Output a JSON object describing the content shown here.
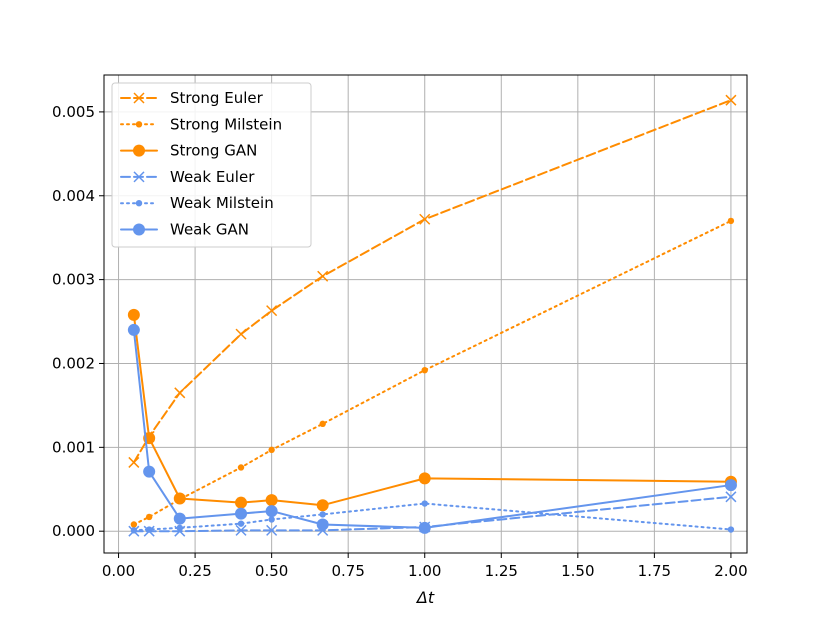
{
  "chart_data": {
    "type": "line",
    "title": "",
    "xlabel": "Δt",
    "ylabel": "",
    "xlim": [
      -0.0475,
      2.0525
    ],
    "ylim": [
      -0.00026,
      0.00544
    ],
    "x_ticks": [
      0.0,
      0.25,
      0.5,
      0.75,
      1.0,
      1.25,
      1.5,
      1.75,
      2.0
    ],
    "x_tick_labels": [
      "0.00",
      "0.25",
      "0.50",
      "0.75",
      "1.00",
      "1.25",
      "1.50",
      "1.75",
      "2.00"
    ],
    "y_ticks": [
      0.0,
      0.001,
      0.002,
      0.003,
      0.004,
      0.005
    ],
    "y_tick_labels": [
      "0.000",
      "0.001",
      "0.002",
      "0.003",
      "0.004",
      "0.005"
    ],
    "grid": true,
    "legend_position": "top-left",
    "x": [
      0.05,
      0.1,
      0.2,
      0.4,
      0.5,
      0.6667,
      1.0,
      2.0
    ],
    "series": [
      {
        "name": "Strong Euler",
        "color": "#ff8c00",
        "linestyle": "dashed",
        "marker": "x",
        "values": [
          0.00082,
          0.00113,
          0.00165,
          0.00235,
          0.00263,
          0.00304,
          0.00372,
          0.00514
        ]
      },
      {
        "name": "Strong Milstein",
        "color": "#ff8c00",
        "linestyle": "dotted",
        "marker": "small-dot",
        "values": [
          8e-05,
          0.00017,
          0.00038,
          0.00076,
          0.00097,
          0.00128,
          0.00192,
          0.0037
        ]
      },
      {
        "name": "Strong GAN",
        "color": "#ff8c00",
        "linestyle": "solid",
        "marker": "circle",
        "values": [
          0.00258,
          0.00111,
          0.00039,
          0.00034,
          0.00037,
          0.00031,
          0.00063,
          0.00059
        ]
      },
      {
        "name": "Weak Euler",
        "color": "#6495ed",
        "linestyle": "dashed",
        "marker": "x",
        "values": [
          0.0,
          0.0,
          0.0,
          1e-05,
          1e-05,
          1e-05,
          5e-05,
          0.00041
        ]
      },
      {
        "name": "Weak Milstein",
        "color": "#6495ed",
        "linestyle": "dotted",
        "marker": "small-dot",
        "values": [
          1e-05,
          2e-05,
          4e-05,
          9e-05,
          0.00014,
          0.0002,
          0.00033,
          2e-05
        ]
      },
      {
        "name": "Weak GAN",
        "color": "#6495ed",
        "linestyle": "solid",
        "marker": "circle",
        "values": [
          0.0024,
          0.00071,
          0.00015,
          0.00021,
          0.00024,
          8e-05,
          4e-05,
          0.00055
        ]
      }
    ]
  }
}
